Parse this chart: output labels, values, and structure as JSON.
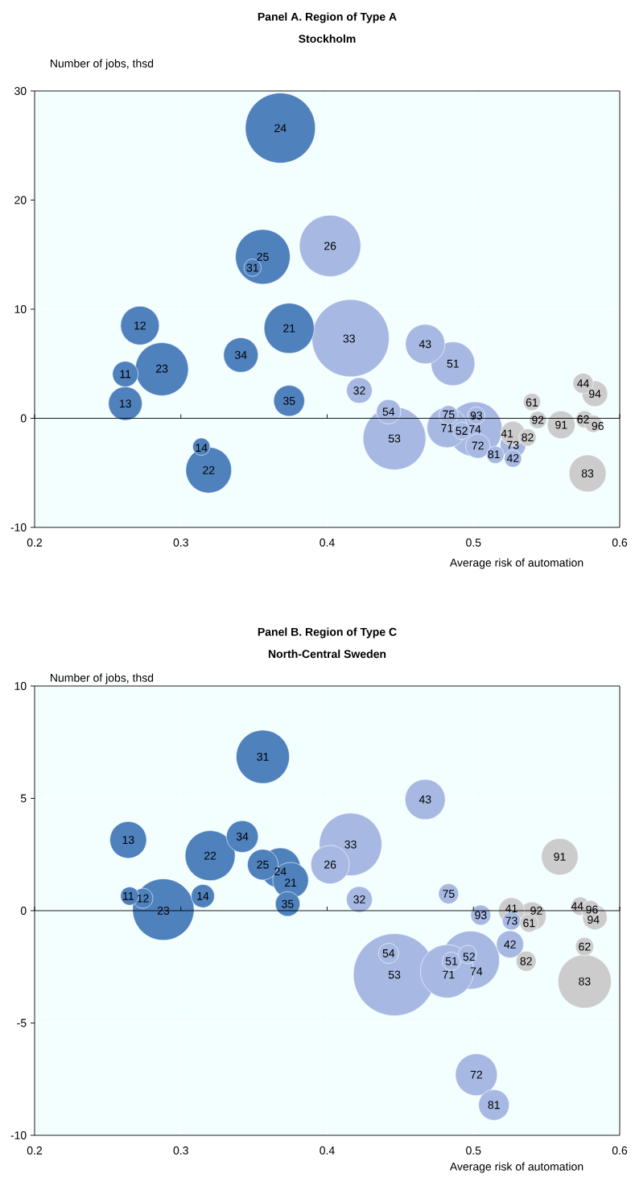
{
  "chart_data": [
    {
      "type": "bubble",
      "title": "Panel A. Region of Type A",
      "subtitle": "Stockholm",
      "xlabel": "Average risk of automation",
      "ylabel": "Number of jobs, thsd",
      "xlim": [
        0.2,
        0.6
      ],
      "ylim": [
        -10,
        30
      ],
      "xticks": [
        0.2,
        0.3,
        0.4,
        0.5,
        0.6
      ],
      "yticks": [
        -10,
        0,
        10,
        20,
        30
      ],
      "grid": true,
      "series": [
        {
          "color": "#4f81bd",
          "x": [
            0.368,
            0.356,
            0.349,
            0.272,
            0.262,
            0.287,
            0.262,
            0.341,
            0.374,
            0.374,
            0.319,
            0.314
          ],
          "values": [
            26.6,
            14.8,
            13.8,
            8.5,
            4.05,
            4.5,
            1.35,
            5.8,
            8.25,
            1.6,
            -4.75,
            -2.6
          ],
          "sizes": [
            0.82,
            0.5,
            0.05,
            0.25,
            0.11,
            0.47,
            0.19,
            0.2,
            0.42,
            0.16,
            0.35,
            0.05
          ]
        },
        {
          "color": "#a7b9e3",
          "x": [
            0.416,
            0.402,
            0.422,
            0.467,
            0.486,
            0.446,
            0.442,
            0.501,
            0.482,
            0.483,
            0.492,
            0.502,
            0.503,
            0.515,
            0.527,
            0.527
          ],
          "values": [
            7.35,
            15.8,
            2.55,
            6.8,
            5.0,
            -1.85,
            0.6,
            -1.0,
            -0.85,
            0.3,
            -1.15,
            0.25,
            -2.55,
            -3.35,
            -2.45,
            -3.7
          ],
          "sizes": [
            1,
            0.63,
            0.11,
            0.26,
            0.32,
            0.66,
            0.1,
            0.5,
            0.27,
            0.06,
            0.05,
            0.05,
            0.1,
            0.05,
            0.11,
            0.05
          ]
        },
        {
          "color": "#cccccc",
          "x": [
            0.527,
            0.537,
            0.54,
            0.544,
            0.56,
            0.575,
            0.583,
            0.576,
            0.582,
            0.578
          ],
          "values": [
            -1.4,
            -1.75,
            1.5,
            -0.15,
            -0.6,
            3.2,
            2.25,
            -0.1,
            -0.5,
            -5.05
          ],
          "sizes": [
            0.1,
            0.05,
            0.05,
            0.05,
            0.13,
            0.07,
            0.11,
            0.05,
            0.05,
            0.23
          ]
        }
      ],
      "annotations": [
        {
          "text": "24",
          "x": 0.368,
          "y": 26.6
        },
        {
          "text": "25",
          "x": 0.356,
          "y": 14.8
        },
        {
          "text": "31",
          "x": 0.349,
          "y": 13.8
        },
        {
          "text": "12",
          "x": 0.272,
          "y": 8.5
        },
        {
          "text": "11",
          "x": 0.262,
          "y": 4.05
        },
        {
          "text": "23",
          "x": 0.287,
          "y": 4.55
        },
        {
          "text": "13",
          "x": 0.262,
          "y": 1.35
        },
        {
          "text": "34",
          "x": 0.341,
          "y": 5.8
        },
        {
          "text": "21",
          "x": 0.374,
          "y": 8.25
        },
        {
          "text": "35",
          "x": 0.374,
          "y": 1.6
        },
        {
          "text": "22",
          "x": 0.319,
          "y": -4.75
        },
        {
          "text": "14",
          "x": 0.314,
          "y": -2.7
        },
        {
          "text": "33",
          "x": 0.415,
          "y": 7.3
        },
        {
          "text": "26",
          "x": 0.402,
          "y": 15.8
        },
        {
          "text": "32",
          "x": 0.422,
          "y": 2.55
        },
        {
          "text": "43",
          "x": 0.467,
          "y": 6.8
        },
        {
          "text": "51",
          "x": 0.486,
          "y": 5.0
        },
        {
          "text": "53",
          "x": 0.446,
          "y": -1.85
        },
        {
          "text": "54",
          "x": 0.442,
          "y": 0.6
        },
        {
          "text": "74",
          "x": 0.501,
          "y": -1.0
        },
        {
          "text": "71",
          "x": 0.482,
          "y": -0.9
        },
        {
          "text": "75",
          "x": 0.483,
          "y": 0.35
        },
        {
          "text": "52",
          "x": 0.492,
          "y": -1.15
        },
        {
          "text": "93",
          "x": 0.502,
          "y": 0.25
        },
        {
          "text": "72",
          "x": 0.503,
          "y": -2.5
        },
        {
          "text": "81",
          "x": 0.514,
          "y": -3.3
        },
        {
          "text": "73",
          "x": 0.527,
          "y": -2.45
        },
        {
          "text": "42",
          "x": 0.527,
          "y": -3.65
        },
        {
          "text": "41",
          "x": 0.523,
          "y": -1.4
        },
        {
          "text": "82",
          "x": 0.537,
          "y": -1.75
        },
        {
          "text": "61",
          "x": 0.54,
          "y": 1.45
        },
        {
          "text": "92",
          "x": 0.544,
          "y": -0.15
        },
        {
          "text": "91",
          "x": 0.56,
          "y": -0.6
        },
        {
          "text": "44",
          "x": 0.575,
          "y": 3.2
        },
        {
          "text": "94",
          "x": 0.583,
          "y": 2.25
        },
        {
          "text": "62",
          "x": 0.575,
          "y": -0.1
        },
        {
          "text": "96",
          "x": 0.585,
          "y": -0.7
        },
        {
          "text": "83",
          "x": 0.578,
          "y": -5.05
        }
      ]
    },
    {
      "type": "bubble",
      "title": "Panel B. Region of Type C",
      "subtitle": "North-Central Sweden",
      "xlabel": "Average risk of automation",
      "ylabel": "Number of jobs, thsd",
      "xlim": [
        0.2,
        0.6
      ],
      "ylim": [
        -10,
        10
      ],
      "xticks": [
        0.2,
        0.3,
        0.4,
        0.5,
        0.6
      ],
      "yticks": [
        -10,
        -5,
        0,
        5,
        10
      ],
      "grid": true,
      "series": [
        {
          "color": "#4f81bd",
          "x": [
            0.356,
            0.264,
            0.32,
            0.342,
            0.356,
            0.368,
            0.375,
            0.373,
            0.265,
            0.274,
            0.288,
            0.315
          ],
          "values": [
            6.85,
            3.15,
            2.45,
            3.3,
            2.05,
            1.9,
            1.35,
            0.3,
            0.65,
            0.55,
            0.05,
            0.65
          ],
          "sizes": [
            0.42,
            0.2,
            0.37,
            0.15,
            0.14,
            0.24,
            0.19,
            0.09,
            0.05,
            0.06,
            0.56,
            0.08
          ]
        },
        {
          "color": "#a7b9e3",
          "x": [
            0.416,
            0.402,
            0.422,
            0.467,
            0.483,
            0.505,
            0.446,
            0.442,
            0.498,
            0.482,
            0.485,
            0.496,
            0.525,
            0.502,
            0.514,
            0.526
          ],
          "values": [
            2.95,
            2.05,
            0.5,
            4.95,
            0.75,
            -0.2,
            -2.85,
            -1.9,
            -2.2,
            -2.7,
            -2.25,
            -1.95,
            -1.5,
            -7.3,
            -8.65,
            -0.45
          ],
          "sizes": [
            0.58,
            0.22,
            0.1,
            0.24,
            0.06,
            0.06,
            1,
            0.06,
            0.5,
            0.42,
            0.05,
            0.05,
            0.11,
            0.26,
            0.14,
            0.05
          ]
        },
        {
          "color": "#cccccc",
          "x": [
            0.526,
            0.54,
            0.538,
            0.536,
            0.559,
            0.573,
            0.58,
            0.583,
            0.576,
            0.576
          ],
          "values": [
            0.0,
            -0.25,
            -0.55,
            -2.25,
            2.4,
            0.2,
            0.05,
            -0.3,
            -1.6,
            -3.15
          ],
          "sizes": [
            0.1,
            0.12,
            0.05,
            0.06,
            0.2,
            0.05,
            0.05,
            0.09,
            0.05,
            0.42
          ]
        }
      ],
      "annotations": [
        {
          "text": "31",
          "x": 0.356,
          "y": 6.85
        },
        {
          "text": "13",
          "x": 0.264,
          "y": 3.15
        },
        {
          "text": "22",
          "x": 0.32,
          "y": 2.45
        },
        {
          "text": "34",
          "x": 0.342,
          "y": 3.3
        },
        {
          "text": "25",
          "x": 0.356,
          "y": 2.05
        },
        {
          "text": "24",
          "x": 0.368,
          "y": 1.75
        },
        {
          "text": "21",
          "x": 0.375,
          "y": 1.25
        },
        {
          "text": "35",
          "x": 0.373,
          "y": 0.3
        },
        {
          "text": "11",
          "x": 0.264,
          "y": 0.65
        },
        {
          "text": "12",
          "x": 0.274,
          "y": 0.55
        },
        {
          "text": "23",
          "x": 0.288,
          "y": 0.0
        },
        {
          "text": "14",
          "x": 0.315,
          "y": 0.65
        },
        {
          "text": "33",
          "x": 0.416,
          "y": 2.95
        },
        {
          "text": "26",
          "x": 0.402,
          "y": 2.05
        },
        {
          "text": "32",
          "x": 0.422,
          "y": 0.5
        },
        {
          "text": "43",
          "x": 0.467,
          "y": 4.95
        },
        {
          "text": "75",
          "x": 0.483,
          "y": 0.75
        },
        {
          "text": "93",
          "x": 0.505,
          "y": -0.2
        },
        {
          "text": "53",
          "x": 0.446,
          "y": -2.85
        },
        {
          "text": "54",
          "x": 0.442,
          "y": -1.9
        },
        {
          "text": "74",
          "x": 0.502,
          "y": -2.7
        },
        {
          "text": "71",
          "x": 0.483,
          "y": -2.85
        },
        {
          "text": "51",
          "x": 0.485,
          "y": -2.25
        },
        {
          "text": "52",
          "x": 0.497,
          "y": -2.05
        },
        {
          "text": "42",
          "x": 0.525,
          "y": -1.5
        },
        {
          "text": "72",
          "x": 0.502,
          "y": -7.3
        },
        {
          "text": "81",
          "x": 0.514,
          "y": -8.65
        },
        {
          "text": "73",
          "x": 0.526,
          "y": -0.45
        },
        {
          "text": "41",
          "x": 0.526,
          "y": 0.1
        },
        {
          "text": "92",
          "x": 0.543,
          "y": 0.0
        },
        {
          "text": "61",
          "x": 0.538,
          "y": -0.55
        },
        {
          "text": "82",
          "x": 0.536,
          "y": -2.25
        },
        {
          "text": "91",
          "x": 0.559,
          "y": 2.4
        },
        {
          "text": "44",
          "x": 0.571,
          "y": 0.2
        },
        {
          "text": "96",
          "x": 0.581,
          "y": 0.05
        },
        {
          "text": "94",
          "x": 0.582,
          "y": -0.4
        },
        {
          "text": "62",
          "x": 0.576,
          "y": -1.6
        },
        {
          "text": "83",
          "x": 0.576,
          "y": -3.15
        }
      ]
    }
  ]
}
